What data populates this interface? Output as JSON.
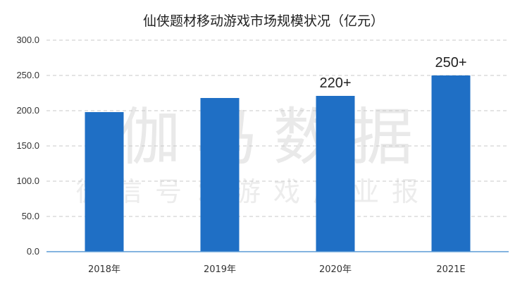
{
  "chart_data": {
    "type": "bar",
    "title": "仙侠题材移动游戏市场规模状况（亿元）",
    "categories": [
      "2018年",
      "2019年",
      "2020年",
      "2021E"
    ],
    "values": [
      198,
      218,
      221,
      250
    ],
    "data_labels": [
      "",
      "",
      "220+",
      "250+"
    ],
    "ylim": [
      0,
      300
    ],
    "yticks": [
      "0.0",
      "50.0",
      "100.0",
      "150.0",
      "200.0",
      "250.0",
      "300.0"
    ],
    "ytick_values": [
      0,
      50,
      100,
      150,
      200,
      250,
      300
    ],
    "grid": true,
    "bar_color": "#1f6fc5",
    "watermark": [
      "伽马数据",
      "微信号：游戏产业报告"
    ]
  }
}
